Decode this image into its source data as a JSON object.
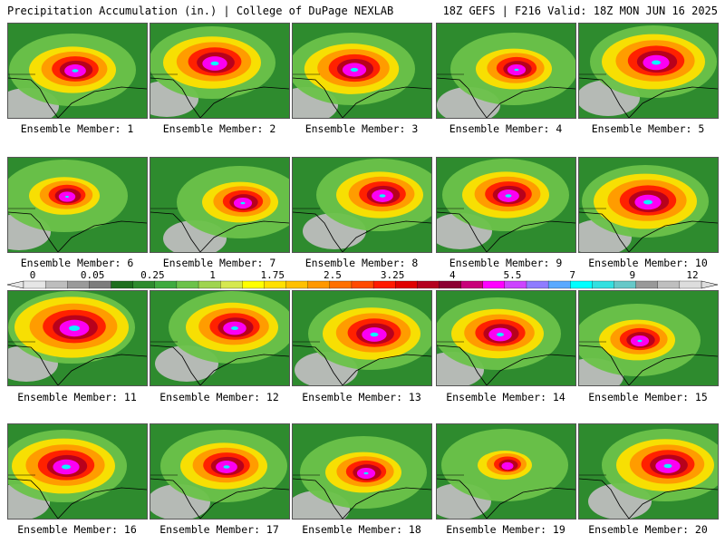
{
  "header": {
    "left": "Precipitation Accumulation (in.) | College of DuPage NEXLAB",
    "right": "18Z GEFS | F216 Valid: 18Z MON JUN 16 2025"
  },
  "panel_label_prefix": "Ensemble Member: ",
  "members": [
    {
      "n": 1,
      "label": "Ensemble Member: 1",
      "intensity": 0.55
    },
    {
      "n": 2,
      "label": "Ensemble Member: 2",
      "intensity": 0.65
    },
    {
      "n": 3,
      "label": "Ensemble Member: 3",
      "intensity": 0.62
    },
    {
      "n": 4,
      "label": "Ensemble Member: 4",
      "intensity": 0.45
    },
    {
      "n": 5,
      "label": "Ensemble Member: 5",
      "intensity": 0.7
    },
    {
      "n": 6,
      "label": "Ensemble Member: 6",
      "intensity": 0.4
    },
    {
      "n": 7,
      "label": "Ensemble Member: 7",
      "intensity": 0.45
    },
    {
      "n": 8,
      "label": "Ensemble Member: 8",
      "intensity": 0.55
    },
    {
      "n": 9,
      "label": "Ensemble Member: 9",
      "intensity": 0.55
    },
    {
      "n": 10,
      "label": "Ensemble Member: 10",
      "intensity": 0.7
    },
    {
      "n": 11,
      "label": "Ensemble Member: 11",
      "intensity": 0.8
    },
    {
      "n": 12,
      "label": "Ensemble Member: 12",
      "intensity": 0.6
    },
    {
      "n": 13,
      "label": "Ensemble Member: 13",
      "intensity": 0.65
    },
    {
      "n": 14,
      "label": "Ensemble Member: 14",
      "intensity": 0.6
    },
    {
      "n": 15,
      "label": "Ensemble Member: 15",
      "intensity": 0.45
    },
    {
      "n": 16,
      "label": "Ensemble Member: 16",
      "intensity": 0.7
    },
    {
      "n": 17,
      "label": "Ensemble Member: 17",
      "intensity": 0.55
    },
    {
      "n": 18,
      "label": "Ensemble Member: 18",
      "intensity": 0.45
    },
    {
      "n": 19,
      "label": "Ensemble Member: 19",
      "intensity": 0.25
    },
    {
      "n": 20,
      "label": "Ensemble Member: 20",
      "intensity": 0.65
    }
  ],
  "colorbar": {
    "tick_labels": [
      "0",
      "0.05",
      "0.25",
      "1",
      "1.75",
      "2.5",
      "3.25",
      "4",
      "5.5",
      "7",
      "9",
      "12"
    ],
    "colors": [
      "#e6e6e6",
      "#bdbdbd",
      "#9a9a9a",
      "#7d7d7d",
      "#1e6e1e",
      "#2e8b2e",
      "#3faa3f",
      "#6cc24a",
      "#9fd44f",
      "#d6e84f",
      "#ffff00",
      "#ffe000",
      "#ffc000",
      "#ff9800",
      "#ff7000",
      "#ff4a00",
      "#ff1a00",
      "#e00000",
      "#b4001e",
      "#8c0032",
      "#c8007a",
      "#ff00ff",
      "#cc44ff",
      "#8f7cff",
      "#5aa9ff",
      "#00ffff",
      "#33e0e0",
      "#66c8c8",
      "#999999",
      "#bfbfbf",
      "#dddddd"
    ]
  }
}
